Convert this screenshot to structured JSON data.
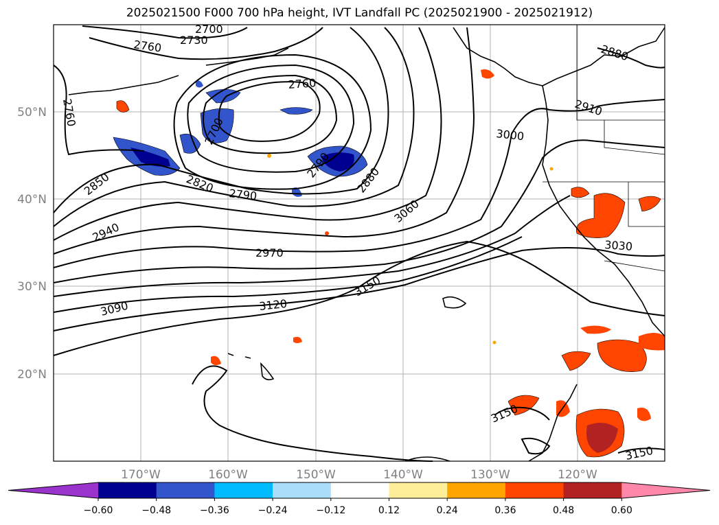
{
  "title": "2025021500 F000 700 hPa height, IVT Landfall PC (2025021900 - 2025021912)",
  "lat_labels": [
    "50°N",
    "40°N",
    "30°N",
    "20°N"
  ],
  "lon_labels": [
    "170°W",
    "160°W",
    "150°W",
    "140°W",
    "130°W",
    "120°W"
  ],
  "contour_labels": [
    "2700",
    "2730",
    "2760",
    "2760",
    "2760",
    "2880",
    "2910",
    "3000",
    "2700",
    "2850",
    "2820",
    "2790",
    "2790",
    "2880",
    "3060",
    "2940",
    "2970",
    "3030",
    "3150",
    "3090",
    "3120",
    "3150",
    "3150"
  ],
  "colorbar": {
    "ticks": [
      "−0.60",
      "−0.48",
      "−0.36",
      "−0.24",
      "−0.12",
      "0.12",
      "0.24",
      "0.36",
      "0.48",
      "0.60"
    ],
    "colors": [
      "#9933cc",
      "#000090",
      "#3355cc",
      "#00bbff",
      "#aaddf8",
      "#ffffff",
      "#ffee99",
      "#ffa500",
      "#ff4500",
      "#b22222",
      "#ff88aa"
    ]
  }
}
